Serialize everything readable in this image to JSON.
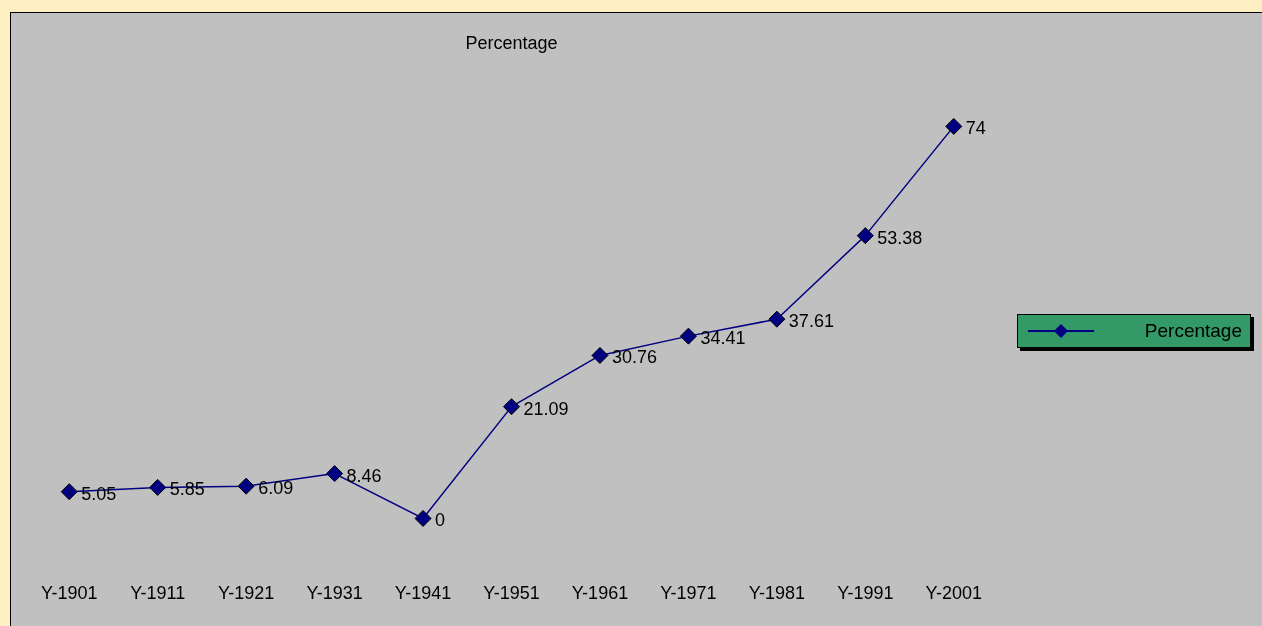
{
  "chart_data": {
    "type": "line",
    "title": "Percentage",
    "categories": [
      "Y-1901",
      "Y-1911",
      "Y-1921",
      "Y-1931",
      "Y-1941",
      "Y-1951",
      "Y-1961",
      "Y-1971",
      "Y-1981",
      "Y-1991",
      "Y-2001"
    ],
    "series": [
      {
        "name": "Percentage",
        "color": "#000080",
        "values": [
          5.05,
          5.85,
          6.09,
          8.46,
          0,
          21.09,
          30.76,
          34.41,
          37.61,
          53.38,
          74
        ]
      }
    ],
    "data_labels": true,
    "legend": "right",
    "marker": "diamond",
    "grid": false
  }
}
